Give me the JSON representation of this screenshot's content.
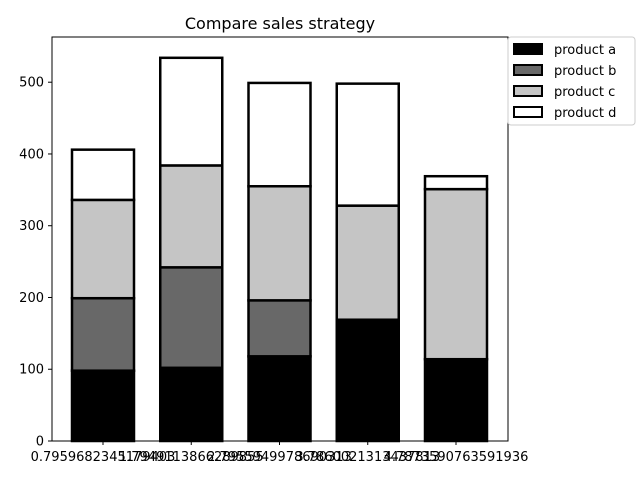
{
  "chart_data": {
    "type": "bar",
    "stacked": true,
    "title": "Compare sales strategy",
    "xlabel": "",
    "ylabel": "",
    "categories": [
      "0.7959682345179403",
      "1.7949113866289855",
      "2.7955949978690313",
      "3.7860021313437813",
      "4.7873590763591936"
    ],
    "series": [
      {
        "name": "product a",
        "color": "#000000",
        "values": [
          98,
          102,
          118,
          169,
          114
        ]
      },
      {
        "name": "product b",
        "color": "#686868",
        "values": [
          101,
          140,
          78,
          0,
          0
        ]
      },
      {
        "name": "product c",
        "color": "#c5c5c5",
        "values": [
          137,
          142,
          159,
          159,
          237
        ]
      },
      {
        "name": "product d",
        "color": "#ffffff",
        "values": [
          70,
          150,
          144,
          170,
          18
        ]
      }
    ],
    "ylim": [
      0,
      563
    ],
    "yticks": [
      0,
      100,
      200,
      300,
      400,
      500
    ],
    "grid": false,
    "legend_position": "outside-top-right"
  }
}
